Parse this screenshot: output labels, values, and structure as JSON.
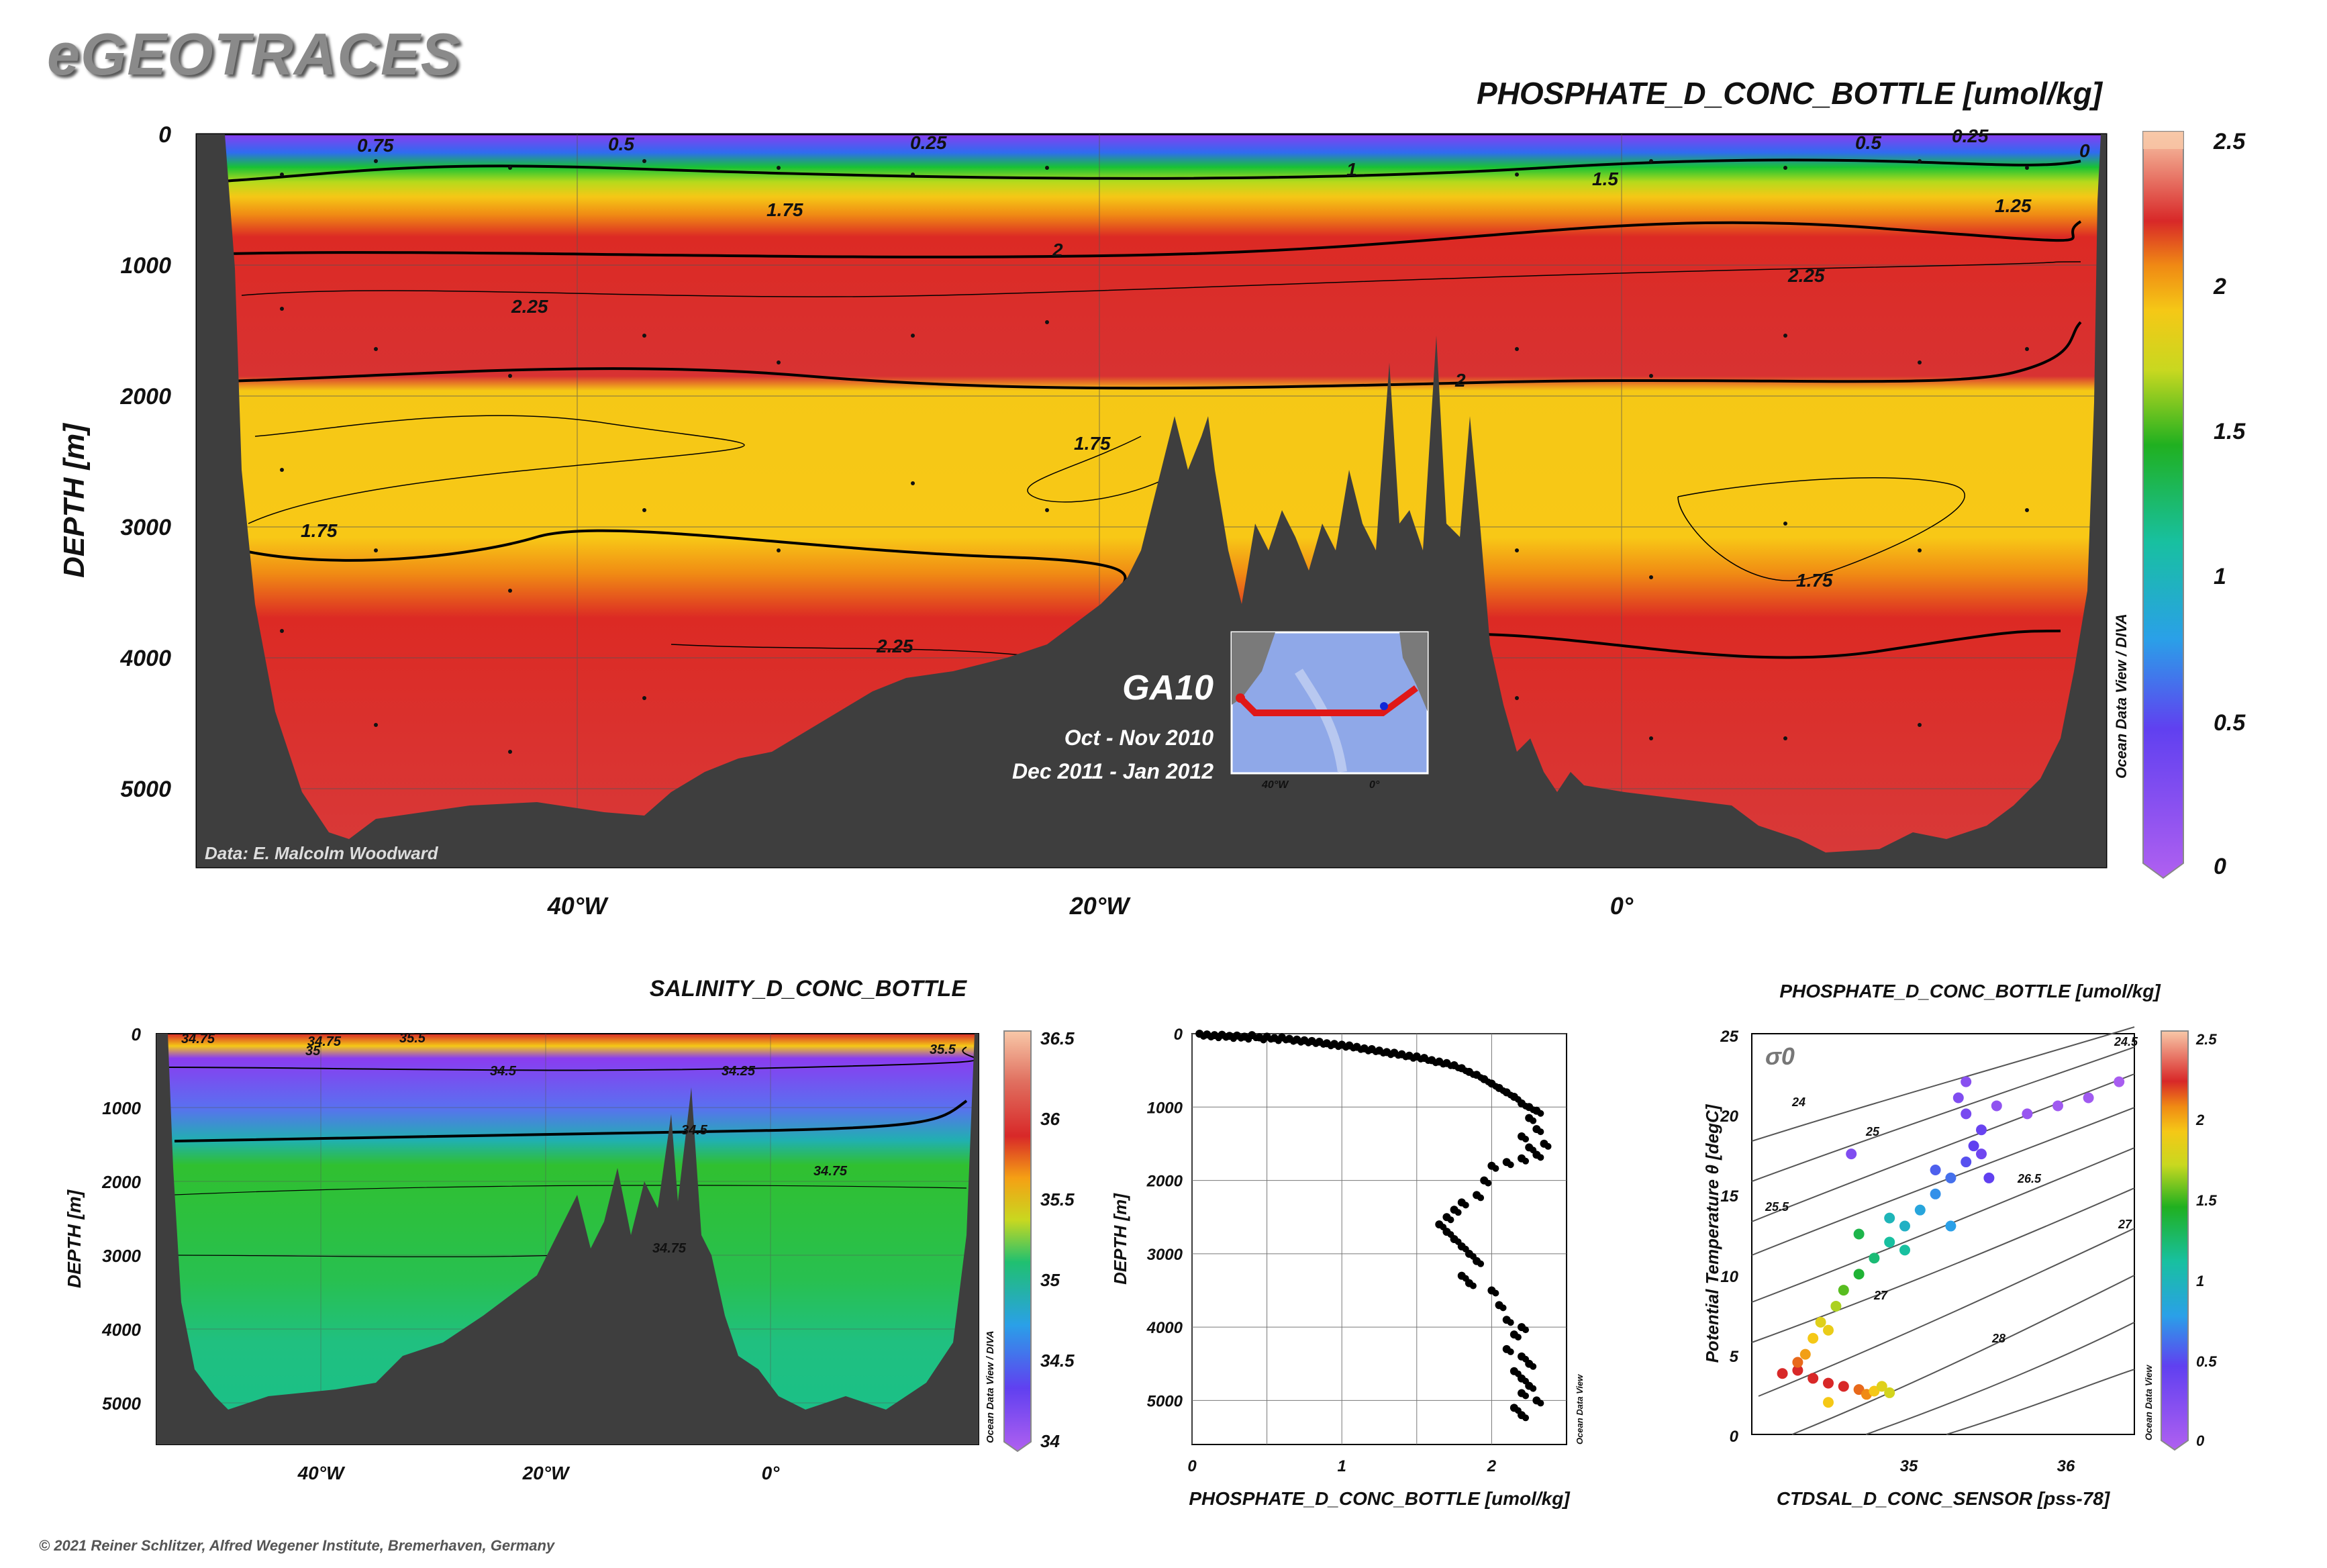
{
  "logo": "eGEOTRACES",
  "copyright": "© 2021 Reiner Schlitzer, Alfred Wegener Institute, Bremerhaven, Germany",
  "chart_data": [
    {
      "type": "heatmap",
      "title": "PHOSPHATE_D_CONC_BOTTLE [umol/kg]",
      "ylabel": "DEPTH [m]",
      "y_ticks": [
        "0",
        "1000",
        "2000",
        "3000",
        "4000",
        "5000"
      ],
      "x_ticks": [
        "40°W",
        "20°W",
        "0°"
      ],
      "colorbar_ticks": [
        "0",
        "0.5",
        "1",
        "1.5",
        "2",
        "2.5"
      ],
      "colorbar_label": "Ocean Data View / DIVA",
      "contour_labels": [
        "0.75",
        "0.5",
        "0.25",
        "0.5",
        "0.25",
        "0",
        "1",
        "1.5",
        "1.25",
        "1.75",
        "2",
        "2.25",
        "2.25",
        "2",
        "1.75",
        "1.75",
        "1.75",
        "2.25"
      ],
      "credit": "Data: E. Malcolm Woodward",
      "inset": {
        "section": "GA10",
        "dates": [
          "Oct - Nov 2010",
          "Dec 2011 - Jan 2012"
        ],
        "x_ticks": [
          "40°W",
          "0°"
        ]
      },
      "colors": {
        "bottom": "#3e3e3e",
        "low": "#8a3cf0",
        "mid": "#18c234",
        "high": "#f5c816",
        "max": "#d82828"
      }
    },
    {
      "type": "heatmap",
      "title": "SALINITY_D_CONC_BOTTLE",
      "ylabel": "DEPTH [m]",
      "y_ticks": [
        "0",
        "1000",
        "2000",
        "3000",
        "4000",
        "5000"
      ],
      "x_ticks": [
        "40°W",
        "20°W",
        "0°"
      ],
      "colorbar_ticks": [
        "34",
        "34.5",
        "35",
        "35.5",
        "36",
        "36.5"
      ],
      "colorbar_label": "Ocean Data View / DIVA",
      "contour_labels": [
        "34.75",
        "35",
        "35.5",
        "34.5",
        "34.25",
        "34.75",
        "35.5",
        "34.5",
        "34.75",
        "34.75"
      ]
    },
    {
      "type": "scatter",
      "xlabel": "PHOSPHATE_D_CONC_BOTTLE [umol/kg]",
      "ylabel": "DEPTH [m]",
      "x_ticks": [
        "0",
        "1",
        "2"
      ],
      "y_ticks": [
        "0",
        "1000",
        "2000",
        "3000",
        "4000",
        "5000"
      ],
      "xlim": [
        0,
        2.5
      ],
      "ylim": [
        5600,
        0
      ],
      "side_label": "Ocean Data View",
      "points": [
        [
          0.05,
          0
        ],
        [
          0.1,
          10
        ],
        [
          0.15,
          20
        ],
        [
          0.2,
          15
        ],
        [
          0.25,
          30
        ],
        [
          0.3,
          25
        ],
        [
          0.35,
          40
        ],
        [
          0.4,
          20
        ],
        [
          0.45,
          50
        ],
        [
          0.5,
          40
        ],
        [
          0.55,
          60
        ],
        [
          0.6,
          50
        ],
        [
          0.65,
          70
        ],
        [
          0.7,
          80
        ],
        [
          0.75,
          90
        ],
        [
          0.8,
          100
        ],
        [
          0.85,
          110
        ],
        [
          0.9,
          130
        ],
        [
          0.95,
          140
        ],
        [
          1.0,
          150
        ],
        [
          1.05,
          160
        ],
        [
          1.1,
          180
        ],
        [
          1.15,
          200
        ],
        [
          1.2,
          210
        ],
        [
          1.25,
          230
        ],
        [
          1.3,
          250
        ],
        [
          1.35,
          260
        ],
        [
          1.4,
          280
        ],
        [
          1.45,
          300
        ],
        [
          1.5,
          310
        ],
        [
          1.55,
          330
        ],
        [
          1.6,
          360
        ],
        [
          1.65,
          380
        ],
        [
          1.7,
          400
        ],
        [
          1.75,
          430
        ],
        [
          1.8,
          470
        ],
        [
          1.85,
          520
        ],
        [
          1.9,
          560
        ],
        [
          1.95,
          620
        ],
        [
          2.0,
          680
        ],
        [
          2.05,
          740
        ],
        [
          2.1,
          800
        ],
        [
          2.15,
          860
        ],
        [
          2.2,
          950
        ],
        [
          2.25,
          1000
        ],
        [
          2.3,
          1050
        ],
        [
          2.25,
          1150
        ],
        [
          2.3,
          1300
        ],
        [
          2.2,
          1400
        ],
        [
          2.35,
          1500
        ],
        [
          2.25,
          1550
        ],
        [
          2.3,
          1650
        ],
        [
          2.2,
          1700
        ],
        [
          2.1,
          1750
        ],
        [
          2.0,
          1800
        ],
        [
          1.95,
          2000
        ],
        [
          1.9,
          2200
        ],
        [
          1.8,
          2300
        ],
        [
          1.75,
          2400
        ],
        [
          1.7,
          2500
        ],
        [
          1.65,
          2600
        ],
        [
          1.7,
          2700
        ],
        [
          1.75,
          2800
        ],
        [
          1.8,
          2900
        ],
        [
          1.85,
          3000
        ],
        [
          1.9,
          3100
        ],
        [
          1.8,
          3300
        ],
        [
          1.85,
          3400
        ],
        [
          2.0,
          3500
        ],
        [
          2.05,
          3700
        ],
        [
          2.1,
          3900
        ],
        [
          2.2,
          4000
        ],
        [
          2.15,
          4100
        ],
        [
          2.1,
          4300
        ],
        [
          2.2,
          4400
        ],
        [
          2.25,
          4500
        ],
        [
          2.15,
          4600
        ],
        [
          2.2,
          4700
        ],
        [
          2.25,
          4800
        ],
        [
          2.2,
          4900
        ],
        [
          2.3,
          5000
        ],
        [
          2.15,
          5100
        ],
        [
          2.2,
          5200
        ]
      ]
    },
    {
      "type": "scatter",
      "title": "PHOSPHATE_D_CONC_BOTTLE [umol/kg]",
      "xlabel": "CTDSAL_D_CONC_SENSOR [pss-78]",
      "ylabel": "Potential Temperature θ [degC]",
      "x_ticks": [
        "35",
        "36"
      ],
      "y_ticks": [
        "0",
        "5",
        "10",
        "15",
        "20",
        "25"
      ],
      "xlim": [
        34.0,
        36.5
      ],
      "ylim": [
        0,
        25
      ],
      "sigma_label": "σ0",
      "isopycnal_labels": [
        "24",
        "24.5",
        "25",
        "25.5",
        "26.5",
        "27",
        "27",
        "28"
      ],
      "colorbar_ticks": [
        "0",
        "0.5",
        "1",
        "1.5",
        "2",
        "2.5"
      ],
      "colorbar_label": "Ocean Data View",
      "points": [
        [
          34.3,
          4.0,
          2.2
        ],
        [
          34.4,
          3.5,
          2.25
        ],
        [
          34.5,
          3.2,
          2.3
        ],
        [
          34.6,
          3.0,
          2.2
        ],
        [
          34.7,
          2.8,
          2.1
        ],
        [
          34.75,
          2.5,
          2.05
        ],
        [
          34.8,
          2.7,
          1.9
        ],
        [
          34.85,
          3.0,
          1.8
        ],
        [
          34.9,
          2.6,
          1.75
        ],
        [
          34.35,
          5.0,
          2.0
        ],
        [
          34.4,
          6.0,
          1.9
        ],
        [
          34.45,
          7.0,
          1.8
        ],
        [
          34.55,
          8.0,
          1.65
        ],
        [
          34.6,
          9.0,
          1.5
        ],
        [
          34.7,
          10.0,
          1.35
        ],
        [
          34.8,
          11.0,
          1.2
        ],
        [
          34.9,
          12.0,
          1.1
        ],
        [
          35.0,
          13.0,
          0.95
        ],
        [
          35.1,
          14.0,
          0.85
        ],
        [
          35.2,
          15.0,
          0.75
        ],
        [
          35.3,
          16.0,
          0.65
        ],
        [
          35.4,
          17.0,
          0.55
        ],
        [
          35.45,
          18.0,
          0.5
        ],
        [
          35.5,
          19.0,
          0.45
        ],
        [
          35.4,
          20.0,
          0.35
        ],
        [
          35.35,
          21.0,
          0.3
        ],
        [
          35.4,
          22.0,
          0.25
        ],
        [
          35.6,
          20.5,
          0.2
        ],
        [
          35.8,
          20.0,
          0.15
        ],
        [
          36.0,
          20.5,
          0.1
        ],
        [
          36.2,
          21.0,
          0.1
        ],
        [
          36.4,
          22.0,
          0.05
        ],
        [
          34.65,
          17.5,
          0.3
        ],
        [
          34.7,
          12.5,
          1.3
        ],
        [
          34.9,
          13.5,
          1.0
        ],
        [
          35.2,
          16.5,
          0.6
        ],
        [
          35.5,
          17.5,
          0.4
        ],
        [
          35.55,
          16.0,
          0.5
        ],
        [
          35.3,
          13.0,
          0.8
        ],
        [
          35.0,
          11.5,
          1.1
        ],
        [
          34.5,
          6.5,
          1.85
        ],
        [
          34.3,
          4.5,
          2.1
        ],
        [
          34.2,
          3.8,
          2.3
        ],
        [
          34.5,
          2.0,
          1.9
        ]
      ]
    }
  ]
}
